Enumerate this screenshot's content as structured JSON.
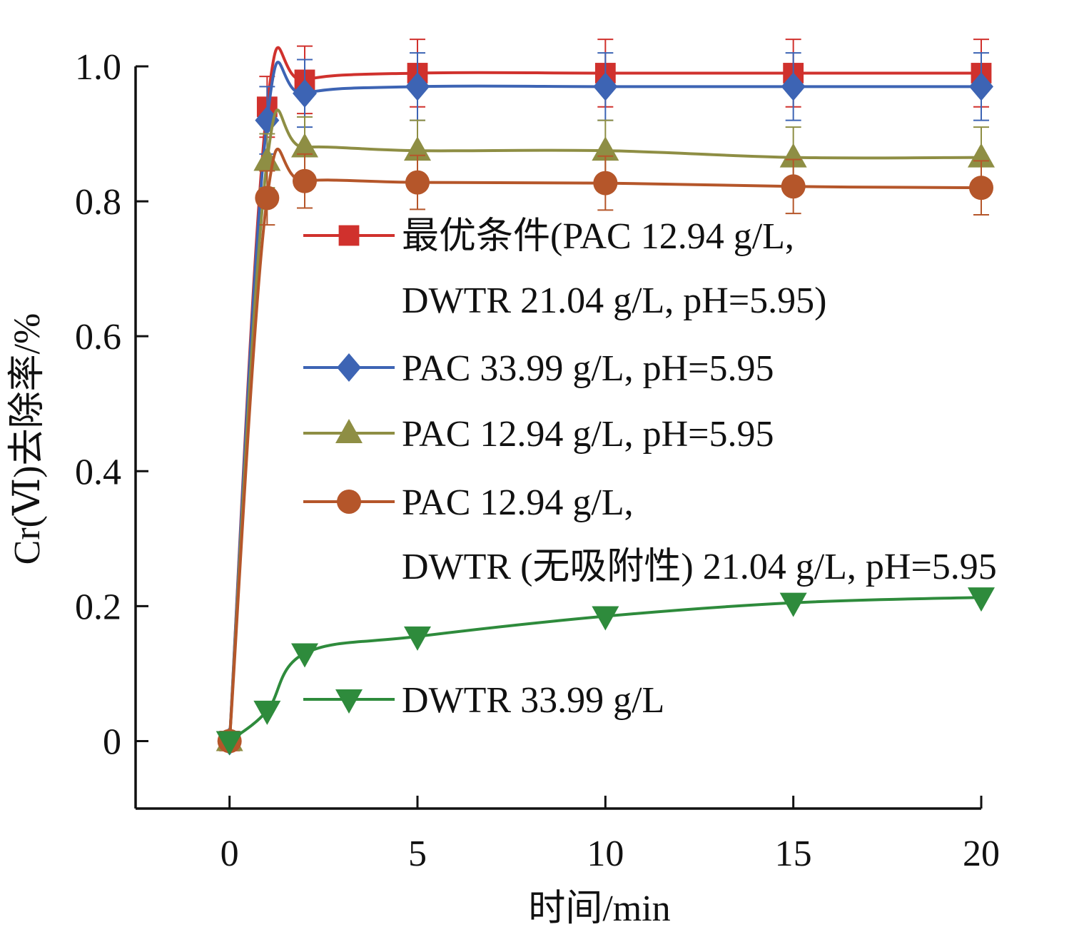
{
  "chart_data": {
    "type": "line",
    "xlabel": "时间/min",
    "ylabel": "Cr(Ⅵ)去除率/%",
    "xlim": [
      -2.5,
      20
    ],
    "ylim": [
      -0.1,
      1.0
    ],
    "xticks": [
      0,
      5,
      10,
      15,
      20
    ],
    "xtick_labels": [
      "0",
      "5",
      "10",
      "15",
      "20"
    ],
    "yticks": [
      0,
      0.2,
      0.4,
      0.6,
      0.8,
      1.0
    ],
    "ytick_labels": [
      "0",
      "0.2",
      "0.4",
      "0.6",
      "0.8",
      "1.0"
    ],
    "grid": false,
    "legend_position": "center-right",
    "x": [
      0,
      1,
      2,
      5,
      10,
      15,
      20
    ],
    "series": [
      {
        "name_lines": [
          "最优条件(PAC 12.94 g/L,",
          "DWTR 21.04 g/L, pH=5.95)"
        ],
        "color": "#D0312D",
        "marker": "square",
        "values": [
          0,
          0.94,
          0.98,
          0.99,
          0.99,
          0.99,
          0.99
        ],
        "error": [
          0,
          0.045,
          0.05,
          0.05,
          0.05,
          0.05,
          0.05
        ]
      },
      {
        "name_lines": [
          "PAC 33.99 g/L, pH=5.95"
        ],
        "color": "#3D64B4",
        "marker": "diamond",
        "values": [
          0,
          0.92,
          0.96,
          0.97,
          0.97,
          0.97,
          0.97
        ],
        "error": [
          0,
          0.05,
          0.05,
          0.05,
          0.05,
          0.05,
          0.05
        ]
      },
      {
        "name_lines": [
          "PAC 12.94 g/L, pH=5.95"
        ],
        "color": "#8E8E44",
        "marker": "triangle-up",
        "values": [
          0,
          0.86,
          0.88,
          0.875,
          0.875,
          0.865,
          0.865
        ],
        "error": [
          0,
          0.04,
          0.045,
          0.045,
          0.045,
          0.045,
          0.045
        ]
      },
      {
        "name_lines": [
          "PAC 12.94 g/L,",
          "DWTR (无吸附性) 21.04 g/L, pH=5.95"
        ],
        "color": "#B5562A",
        "marker": "circle",
        "values": [
          0,
          0.805,
          0.83,
          0.828,
          0.827,
          0.822,
          0.82
        ],
        "error": [
          0,
          0.04,
          0.04,
          0.04,
          0.04,
          0.04,
          0.04
        ]
      },
      {
        "name_lines": [
          "DWTR 33.99 g/L"
        ],
        "color": "#2E8B3C",
        "marker": "triangle-down",
        "values": [
          0,
          0.045,
          0.13,
          0.155,
          0.185,
          0.205,
          0.213
        ],
        "error": [
          0,
          0,
          0,
          0,
          0,
          0,
          0
        ]
      }
    ]
  }
}
